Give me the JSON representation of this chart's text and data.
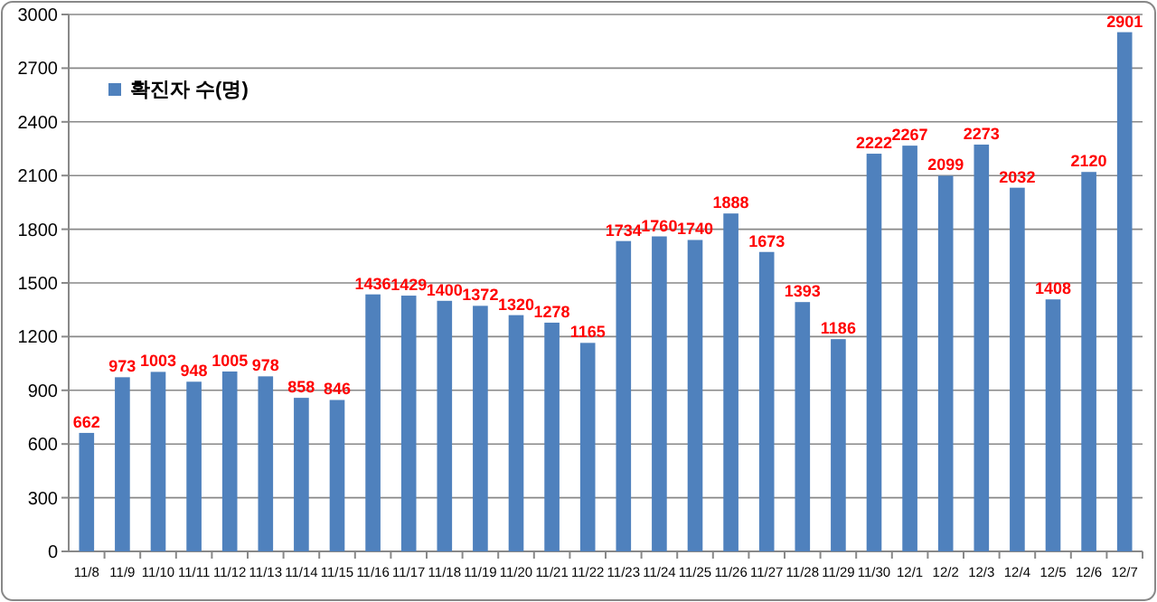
{
  "chart_data": {
    "type": "bar",
    "categories": [
      "11/8",
      "11/9",
      "11/10",
      "11/11",
      "11/12",
      "11/13",
      "11/14",
      "11/15",
      "11/16",
      "11/17",
      "11/18",
      "11/19",
      "11/20",
      "11/21",
      "11/22",
      "11/23",
      "11/24",
      "11/25",
      "11/26",
      "11/27",
      "11/28",
      "11/29",
      "11/30",
      "12/1",
      "12/2",
      "12/3",
      "12/4",
      "12/5",
      "12/6",
      "12/7"
    ],
    "series": [
      {
        "name": "확진자 수(명)",
        "color": "#4f81bd",
        "values": [
          662,
          973,
          1003,
          948,
          1005,
          978,
          858,
          846,
          1436,
          1429,
          1400,
          1372,
          1320,
          1278,
          1165,
          1734,
          1760,
          1740,
          1888,
          1673,
          1393,
          1186,
          2222,
          2267,
          2099,
          2273,
          2032,
          1408,
          2120,
          2901
        ]
      }
    ],
    "ylim": [
      0,
      3000
    ],
    "yticks": [
      0,
      300,
      600,
      900,
      1200,
      1500,
      1800,
      2100,
      2400,
      2700,
      3000
    ],
    "grid": "y",
    "legend": "top left",
    "data_labels": true
  }
}
